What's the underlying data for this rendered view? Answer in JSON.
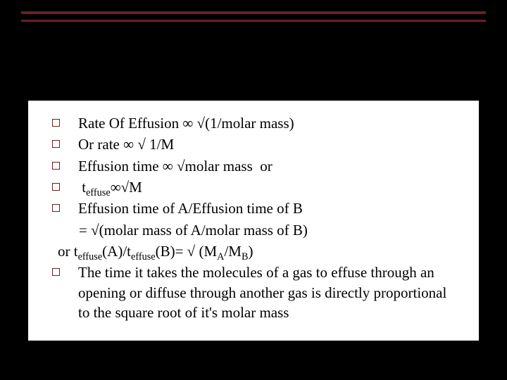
{
  "slide": {
    "background_color": "#000000",
    "card_background": "#ffffff",
    "rule_color": "#6b1f1f",
    "bullet_border_color": "#6b1f1f",
    "text_color": "#000000",
    "font_family": "Times New Roman",
    "body_fontsize": 21
  },
  "bullets": [
    {
      "html": "Rate Of Effusion ∞ √(1/molar mass)"
    },
    {
      "html": "Or rate ∞ √ 1/M"
    },
    {
      "html": "Effusion time ∞ √molar mass&nbsp;&nbsp;or"
    },
    {
      "html": "&nbsp;t<sub>effuse</sub>∞√M"
    },
    {
      "html": "Effusion time of A/Effusion time of B"
    }
  ],
  "continuation1": "= √(molar mass of A/molar mass of B)",
  "or_line": "or t<sub>effuse</sub>(A)/t<sub>effuse</sub>(B)= √ (M<sub>A</sub>/M<sub>B</sub>)",
  "bullets2": [
    {
      "html": "The time it takes the molecules of a gas to effuse through an opening or diffuse through another gas is directly proportional to the square root of it's molar mass"
    }
  ]
}
